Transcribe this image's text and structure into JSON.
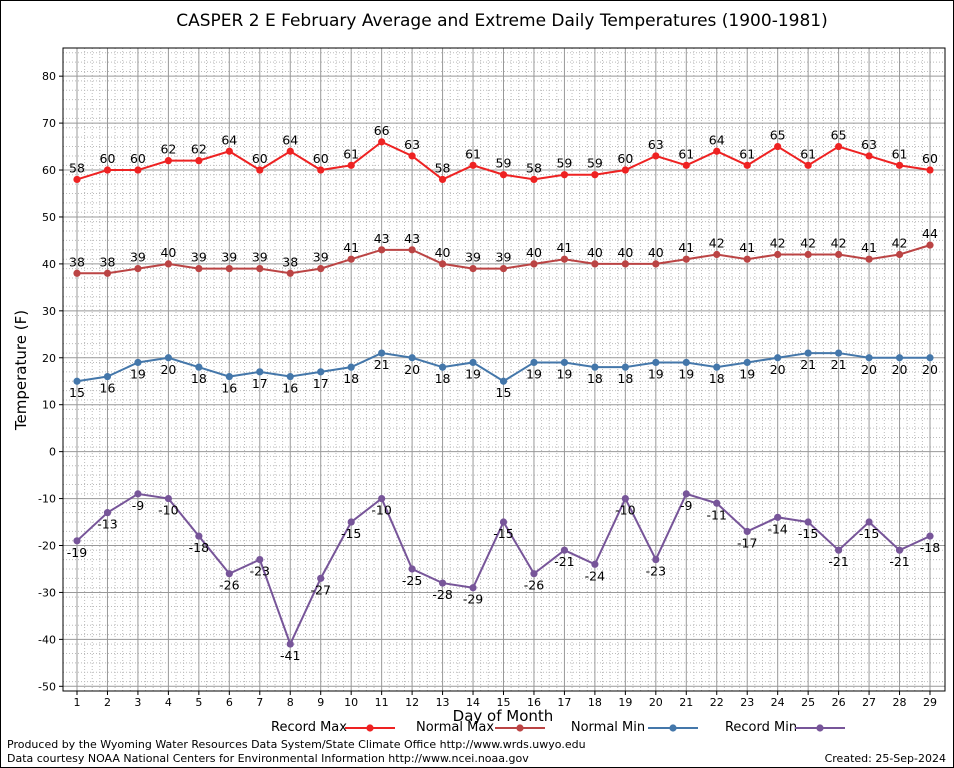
{
  "chart_data": {
    "type": "line",
    "title": "CASPER 2 E February Average and Extreme Daily Temperatures (1900-1981)",
    "xlabel": "Day of Month",
    "ylabel": "Temperature (F)",
    "ylim": [
      -51,
      86
    ],
    "yticks": [
      -50,
      -40,
      -30,
      -20,
      -10,
      0,
      10,
      20,
      30,
      40,
      50,
      60,
      70,
      80
    ],
    "x": [
      1,
      2,
      3,
      4,
      5,
      6,
      7,
      8,
      9,
      10,
      11,
      12,
      13,
      14,
      15,
      16,
      17,
      18,
      19,
      20,
      21,
      22,
      23,
      24,
      25,
      26,
      27,
      28,
      29
    ],
    "grid": true,
    "legend_position": "bottom",
    "series": [
      {
        "name": "Record Max",
        "color": "#ee2222",
        "label_pos": "above",
        "values": [
          58,
          60,
          60,
          62,
          62,
          64,
          60,
          64,
          60,
          61,
          66,
          63,
          58,
          61,
          59,
          58,
          59,
          59,
          60,
          63,
          61,
          64,
          61,
          65,
          61,
          65,
          63,
          61,
          60
        ]
      },
      {
        "name": "Normal Max",
        "color": "#bb4444",
        "label_pos": "above",
        "values": [
          38,
          38,
          39,
          40,
          39,
          39,
          39,
          38,
          39,
          41,
          43,
          43,
          40,
          39,
          39,
          40,
          41,
          40,
          40,
          40,
          41,
          42,
          41,
          42,
          42,
          42,
          41,
          42,
          44
        ]
      },
      {
        "name": "Normal Min",
        "color": "#4477aa",
        "label_pos": "below",
        "values": [
          15,
          16,
          19,
          20,
          18,
          16,
          17,
          16,
          17,
          18,
          21,
          20,
          18,
          19,
          15,
          19,
          19,
          18,
          18,
          19,
          19,
          18,
          19,
          20,
          21,
          21,
          20,
          20,
          20
        ]
      },
      {
        "name": "Record Min",
        "color": "#775599",
        "label_pos": "below",
        "values": [
          -19,
          -13,
          -9,
          -10,
          -18,
          -26,
          -23,
          -41,
          -27,
          -15,
          -10,
          -25,
          -28,
          -29,
          -15,
          -26,
          -21,
          -24,
          -10,
          -23,
          -9,
          -11,
          -17,
          -14,
          -15,
          -21,
          -15,
          -21,
          -18
        ]
      }
    ]
  },
  "footer": {
    "produced_by": "Produced by the Wyoming Water Resources Data System/State Climate Office http://www.wrds.uwyo.edu",
    "courtesy": "Data courtesy NOAA National Centers for Environmental Information http://www.ncei.noaa.gov",
    "created": "Created:  25-Sep-2024"
  }
}
